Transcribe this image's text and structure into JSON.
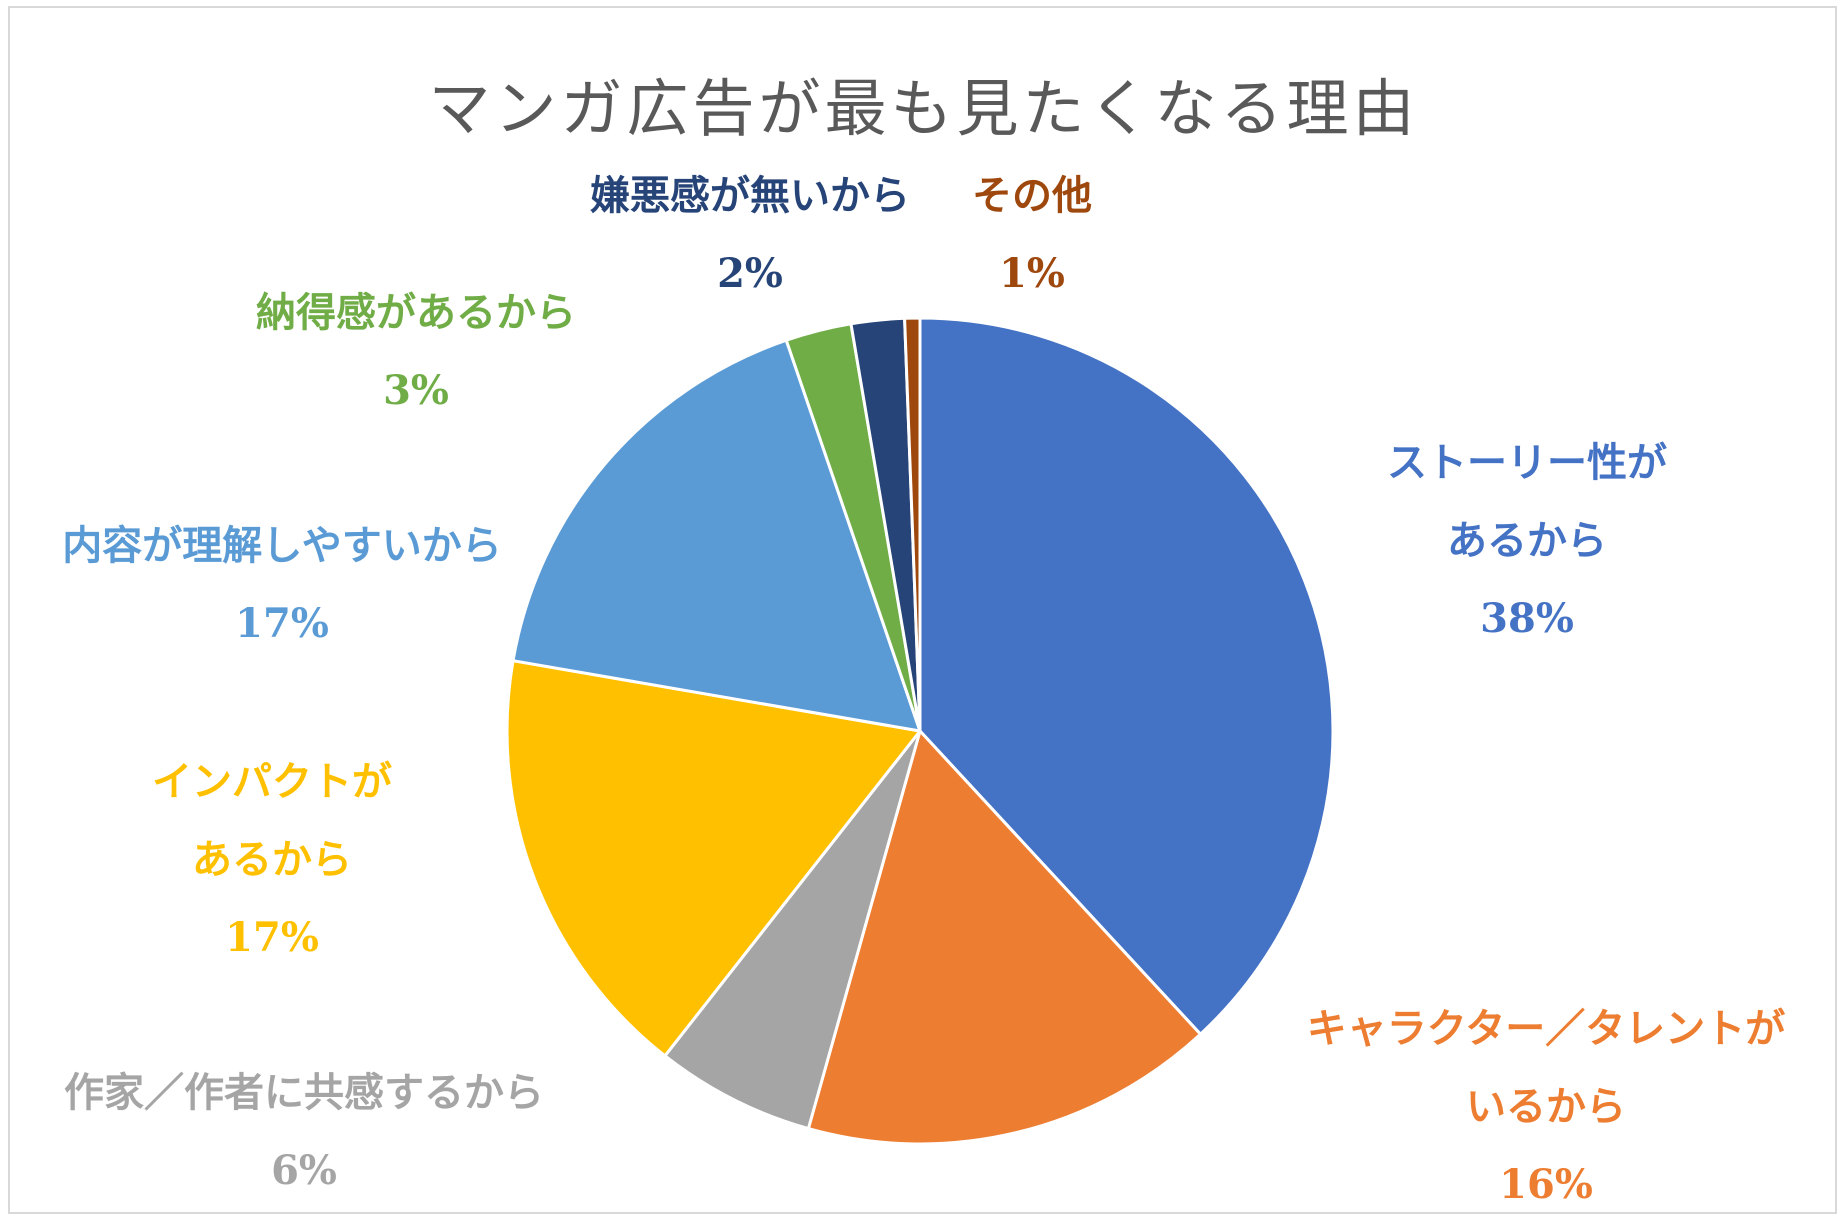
{
  "chart_data": {
    "type": "pie",
    "title": "マンガ広告が最も見たくなる理由",
    "slices": [
      {
        "lines": [
          "ストーリー性が",
          "あるから"
        ],
        "percent_label": "38%",
        "value": 38.5,
        "color": "#4472C4"
      },
      {
        "lines": [
          "キャラクター／タレントが",
          "いるから"
        ],
        "percent_label": "16%",
        "value": 16.4,
        "color": "#ED7D31"
      },
      {
        "lines": [
          "作家／作者に共感するから"
        ],
        "percent_label": "6%",
        "value": 6.3,
        "color": "#A5A5A5"
      },
      {
        "lines": [
          "インパクトが",
          "あるから"
        ],
        "percent_label": "17%",
        "value": 17.3,
        "color": "#FFC000"
      },
      {
        "lines": [
          "内容が理解しやすいから"
        ],
        "percent_label": "17%",
        "value": 17.2,
        "color": "#5B9BD5"
      },
      {
        "lines": [
          "納得感があるから"
        ],
        "percent_label": "3%",
        "value": 2.6,
        "color": "#70AD47"
      },
      {
        "lines": [
          "嫌悪感が無いから"
        ],
        "percent_label": "2%",
        "value": 2.1,
        "color": "#264478"
      },
      {
        "lines": [
          "その他"
        ],
        "percent_label": "1%",
        "value": 0.6,
        "color": "#9E480E"
      }
    ],
    "legend": "none",
    "data_labels": "outside"
  }
}
